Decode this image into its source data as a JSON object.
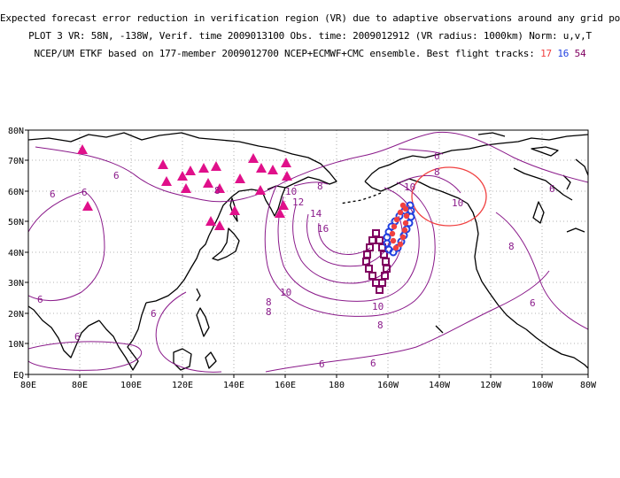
{
  "header": {
    "line1": "Expected forecast error reduction in verification region (VR) due to adaptive observations around any grid point.",
    "line2": "PLOT 3 VR: 58N, -138W, Verif. time 2009013100 Obs. time: 2009012912 (VR radius: 1000km) Norm: u,v,T",
    "line3": "NCEP/UM ETKF based on 177-member 2009012700 NCEP+ECMWF+CMC ensemble. Best flight tracks:",
    "tracks": [
      "17",
      "16",
      "54"
    ]
  },
  "colors": {
    "contour": "#8a1a8a",
    "coast": "#000000",
    "grid": "#9a9a9a",
    "triangle": "#e0108a",
    "track17": "#f04040",
    "track16": "#2040e0",
    "track54": "#800060",
    "vr_circle": "#f04040"
  },
  "axes": {
    "lon_labels": [
      "80E",
      "80E",
      "100E",
      "120E",
      "140E",
      "160E",
      "180",
      "160W",
      "140W",
      "120W",
      "100W",
      "80W"
    ],
    "lat_labels": [
      "80N",
      "70N",
      "60N",
      "50N",
      "40N",
      "30N",
      "20N",
      "10N",
      "EQ"
    ]
  },
  "contour_labels": {
    "c6": "6",
    "c8": "8",
    "c10": "10",
    "c12": "12",
    "c14": "14",
    "c16": "16"
  },
  "map": {
    "verification_region": {
      "lat": 58,
      "lon": -138,
      "radius_km": 1000
    }
  }
}
